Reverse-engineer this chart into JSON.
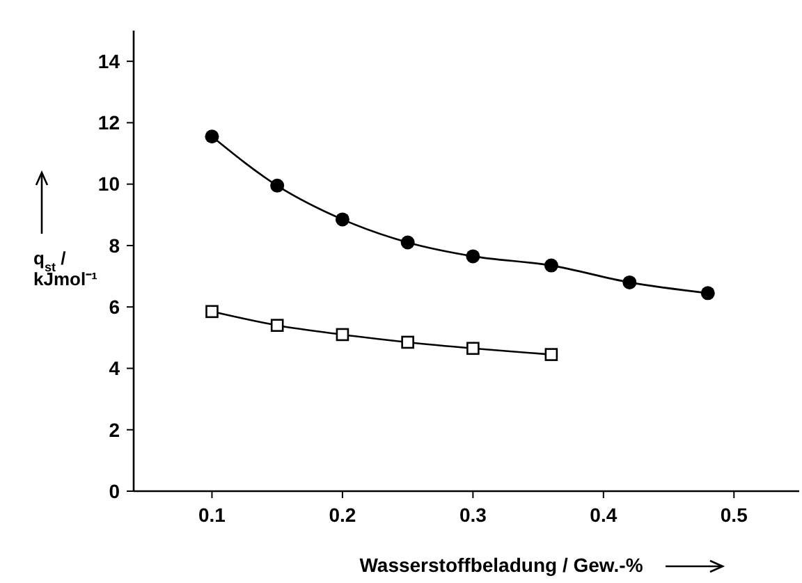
{
  "chart_data": {
    "type": "line",
    "xlabel": "Wasserstoffbeladung / Gew.-%",
    "ylabel": "q$_{st}$ / kJmol⁻¹",
    "xlim": [
      0.04,
      0.55
    ],
    "ylim": [
      0,
      15
    ],
    "xticks": [
      0.1,
      0.2,
      0.3,
      0.4,
      0.5
    ],
    "yticks": [
      0,
      2,
      4,
      6,
      8,
      10,
      12,
      14
    ],
    "grid": false,
    "series": [
      {
        "color": "#000000",
        "marker": "circle",
        "x": [
          0.1,
          0.15,
          0.2,
          0.25,
          0.3,
          0.36,
          0.42,
          0.48
        ],
        "values": [
          11.55,
          9.95,
          8.85,
          8.1,
          7.65,
          7.35,
          6.8,
          6.45
        ]
      },
      {
        "color": "#000000",
        "marker": "square",
        "x": [
          0.1,
          0.15,
          0.2,
          0.25,
          0.3,
          0.36
        ],
        "values": [
          5.85,
          5.4,
          5.1,
          4.85,
          4.65,
          4.45
        ]
      }
    ]
  }
}
